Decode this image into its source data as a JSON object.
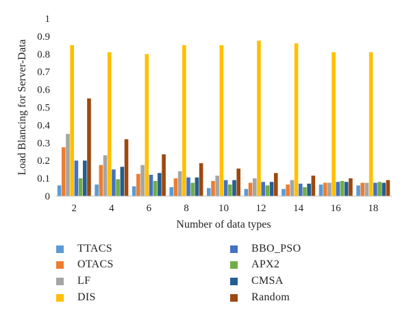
{
  "chart_data": {
    "type": "bar",
    "title": "",
    "xlabel": "Number of data types",
    "ylabel": "Load Blancing for Server-Data",
    "ylim": [
      0,
      1
    ],
    "yticks": [
      "0",
      "0.1",
      "0.2",
      "0.3",
      "0.4",
      "0.5",
      "0.6",
      "0.7",
      "0.8",
      "0.9",
      "1"
    ],
    "categories": [
      "2",
      "4",
      "6",
      "8",
      "10",
      "12",
      "14",
      "16",
      "18"
    ],
    "grid": false,
    "legend_position": "bottom",
    "series": [
      {
        "name": "TTACS",
        "color": "#5b9bd5",
        "values": [
          0.06,
          0.065,
          0.055,
          0.05,
          0.045,
          0.04,
          0.04,
          0.065,
          0.06
        ]
      },
      {
        "name": "OTACS",
        "color": "#ed7d31",
        "values": [
          0.275,
          0.175,
          0.125,
          0.1,
          0.085,
          0.075,
          0.065,
          0.075,
          0.075
        ]
      },
      {
        "name": "LF",
        "color": "#a5a5a5",
        "values": [
          0.35,
          0.23,
          0.175,
          0.14,
          0.115,
          0.1,
          0.09,
          0.075,
          0.075
        ]
      },
      {
        "name": "DIS",
        "color": "#ffc000",
        "values": [
          0.85,
          0.81,
          0.8,
          0.85,
          0.85,
          0.875,
          0.86,
          0.81,
          0.81
        ]
      },
      {
        "name": "BBO_PSO",
        "color": "#4472c4",
        "values": [
          0.2,
          0.15,
          0.12,
          0.105,
          0.09,
          0.08,
          0.07,
          0.08,
          0.075
        ]
      },
      {
        "name": "APX2",
        "color": "#70ad47",
        "values": [
          0.1,
          0.095,
          0.085,
          0.075,
          0.065,
          0.06,
          0.05,
          0.085,
          0.08
        ]
      },
      {
        "name": "CMSA",
        "color": "#255e91",
        "values": [
          0.2,
          0.165,
          0.13,
          0.105,
          0.09,
          0.08,
          0.07,
          0.08,
          0.075
        ]
      },
      {
        "name": "Random",
        "color": "#9e480e",
        "values": [
          0.55,
          0.32,
          0.235,
          0.185,
          0.155,
          0.13,
          0.115,
          0.1,
          0.09
        ]
      }
    ]
  }
}
